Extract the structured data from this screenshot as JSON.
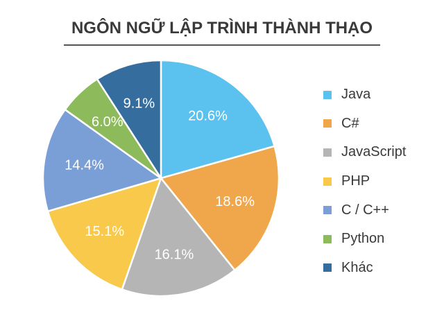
{
  "chart_data": {
    "type": "pie",
    "title": "NGÔN NGỮ LẬP TRÌNH THÀNH THẠO",
    "legend_position": "right",
    "categories": [
      "Java",
      "C#",
      "JavaScript",
      "PHP",
      "C / C++",
      "Python",
      "Khác"
    ],
    "values": [
      20.6,
      18.6,
      16.1,
      15.1,
      14.4,
      6.0,
      9.1
    ],
    "value_labels": [
      "20.6%",
      "18.6%",
      "16.1%",
      "15.1%",
      "14.4%",
      "6.0%",
      "9.1%"
    ],
    "colors": [
      "#5bc2ef",
      "#f0a64a",
      "#b5b5b5",
      "#f8c94a",
      "#7a9fd6",
      "#8dba5a",
      "#356e9e"
    ],
    "start": "12 o'clock",
    "direction": "clockwise"
  }
}
